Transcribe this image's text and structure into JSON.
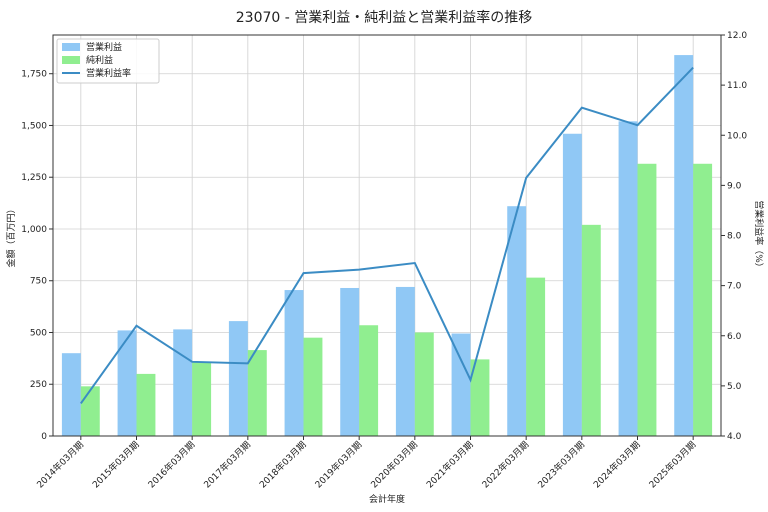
{
  "chart_data": {
    "type": "bar",
    "title": "23070 - 営業利益・純利益と営業利益率の推移",
    "xlabel": "会計年度",
    "ylabel": "金額（百万円）",
    "y2label": "営業利益率（%）",
    "categories": [
      "2014年03月期",
      "2015年03月期",
      "2016年03月期",
      "2017年03月期",
      "2018年03月期",
      "2019年03月期",
      "2020年03月期",
      "2021年03月期",
      "2022年03月期",
      "2023年03月期",
      "2024年03月期",
      "2025年03月期"
    ],
    "ylim": [
      0,
      1937
    ],
    "y2lim": [
      4.0,
      12.0
    ],
    "yticks": [
      0,
      250,
      500,
      750,
      1000,
      1250,
      1500,
      1750
    ],
    "ytick_labels": [
      "0",
      "250",
      "500",
      "750",
      "1,000",
      "1,250",
      "1,500",
      "1,750"
    ],
    "y2ticks": [
      4.0,
      5.0,
      6.0,
      7.0,
      8.0,
      9.0,
      10.0,
      11.0,
      12.0
    ],
    "y2tick_labels": [
      "4.0",
      "5.0",
      "6.0",
      "7.0",
      "8.0",
      "9.0",
      "10.0",
      "11.0",
      "12.0"
    ],
    "grid": true,
    "legend_position": "top-left",
    "series": [
      {
        "name": "営業利益",
        "kind": "bar",
        "axis": "left",
        "color": "#90c8f5",
        "values": [
          400,
          510,
          515,
          555,
          705,
          715,
          720,
          495,
          1110,
          1460,
          1520,
          1840
        ]
      },
      {
        "name": "純利益",
        "kind": "bar",
        "axis": "left",
        "color": "#90ee90",
        "values": [
          240,
          300,
          355,
          415,
          475,
          535,
          500,
          370,
          765,
          1020,
          1315,
          1315
        ]
      },
      {
        "name": "営業利益率",
        "kind": "line",
        "axis": "right",
        "color": "#3b8cc4",
        "values": [
          4.65,
          6.2,
          5.48,
          5.45,
          7.25,
          7.32,
          7.45,
          5.12,
          9.15,
          10.55,
          10.2,
          11.35
        ]
      }
    ]
  }
}
